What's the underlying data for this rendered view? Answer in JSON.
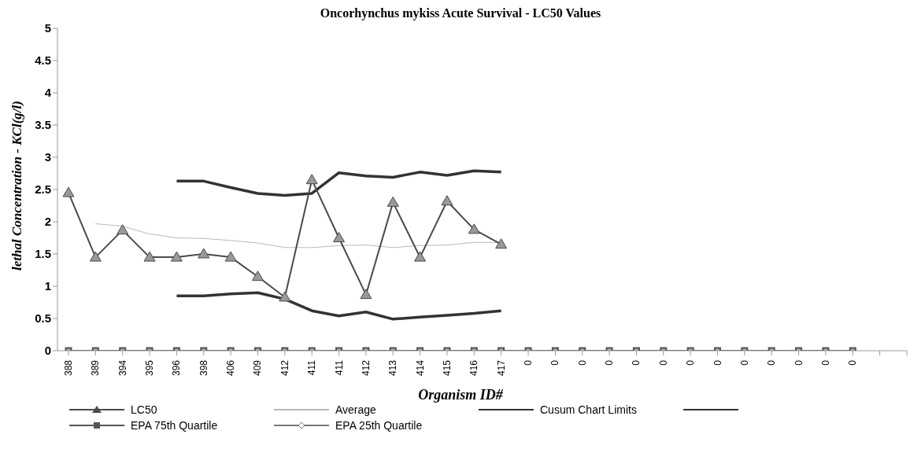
{
  "chart_data": {
    "type": "line",
    "title": "Oncorhynchus mykiss Acute Survival - LC50 Values",
    "xlabel": "Organism ID#",
    "ylabel": "lethal Concentration - KCl(g/l)",
    "categories": [
      "388",
      "389",
      "394",
      "395",
      "396",
      "398",
      "406",
      "409",
      "412",
      "411",
      "411",
      "412",
      "413",
      "414",
      "415",
      "416",
      "417",
      "0",
      "0",
      "0",
      "0",
      "0",
      "0",
      "0",
      "0",
      "0",
      "0",
      "0",
      "0",
      "0",
      null,
      null
    ],
    "series": [
      {
        "name": "LC50",
        "color": "#4a4a4a",
        "marker": "triangle",
        "values": [
          2.45,
          1.45,
          1.87,
          1.45,
          1.45,
          1.5,
          1.45,
          1.15,
          0.83,
          2.65,
          1.75,
          0.87,
          2.3,
          1.45,
          2.32,
          1.88,
          1.65,
          null,
          null,
          null,
          null,
          null,
          null,
          null,
          null,
          null,
          null,
          null,
          null,
          null,
          null,
          null
        ]
      },
      {
        "name": "Average",
        "color": "#b8b8b8",
        "marker": "none",
        "values": [
          null,
          1.97,
          1.93,
          1.81,
          1.75,
          1.74,
          1.71,
          1.67,
          1.6,
          1.6,
          1.63,
          1.64,
          1.6,
          1.63,
          1.64,
          1.68,
          1.68,
          null,
          null,
          null,
          null,
          null,
          null,
          null,
          null,
          null,
          null,
          null,
          null,
          null,
          null,
          null
        ]
      },
      {
        "name": "Cusum Chart Limits",
        "color": "#333333",
        "marker": "none",
        "values": [
          null,
          null,
          null,
          null,
          2.63,
          2.63,
          2.53,
          2.44,
          2.41,
          2.44,
          2.76,
          2.71,
          2.69,
          2.77,
          2.72,
          2.79,
          2.77,
          null,
          null,
          null,
          null,
          null,
          null,
          null,
          null,
          null,
          null,
          null,
          null,
          null,
          null,
          null
        ]
      },
      {
        "color": "#333333",
        "marker": "none",
        "values": [
          null,
          null,
          null,
          null,
          0.85,
          0.85,
          0.88,
          0.9,
          0.8,
          0.62,
          0.54,
          0.6,
          0.49,
          0.52,
          0.55,
          0.58,
          0.62,
          null,
          null,
          null,
          null,
          null,
          null,
          null,
          null,
          null,
          null,
          null,
          null,
          null,
          null,
          null
        ]
      },
      {
        "name": "EPA 75th Quartile",
        "color": "#555555",
        "marker": "square",
        "values": [
          0,
          0,
          0,
          0,
          0,
          0,
          0,
          0,
          0,
          0,
          0,
          0,
          0,
          0,
          0,
          0,
          0,
          0,
          0,
          0,
          0,
          0,
          0,
          0,
          0,
          0,
          0,
          0,
          0,
          0,
          null,
          null
        ]
      },
      {
        "name": "EPA 25th Quartile",
        "color": "#777777",
        "marker": "diamond",
        "values": [
          null,
          null,
          null,
          null,
          null,
          null,
          null,
          null,
          null,
          null,
          null,
          null,
          null,
          null,
          null,
          null,
          null,
          null,
          null,
          null,
          null,
          null,
          null,
          null,
          null,
          null,
          null,
          null,
          null,
          null,
          null,
          null
        ]
      }
    ],
    "ylim": [
      0,
      5
    ],
    "yticks": [
      0,
      0.5,
      1,
      1.5,
      2,
      2.5,
      3,
      3.5,
      4,
      4.5,
      5
    ],
    "grid": false,
    "legend": "bottom"
  }
}
